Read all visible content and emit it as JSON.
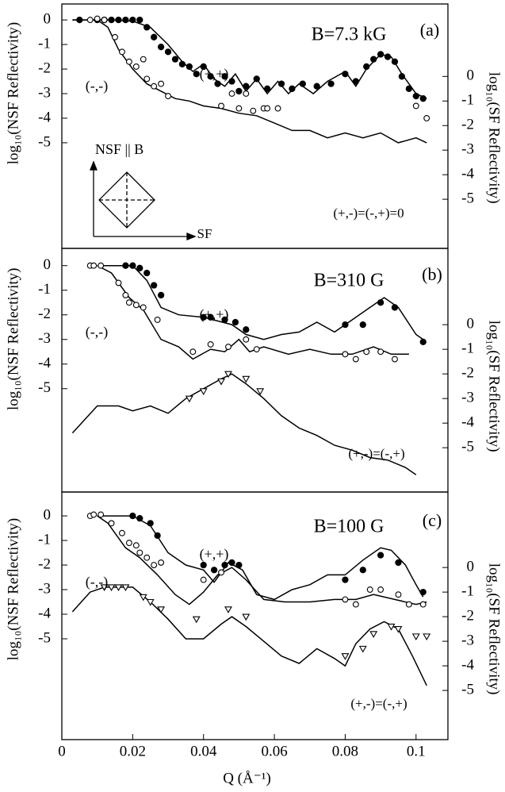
{
  "chart_data": [
    {
      "type": "scatter",
      "xlim": [
        0,
        0.109
      ],
      "ylim": [
        -9.3,
        0.65
      ],
      "yticks": [
        0,
        -1,
        -2,
        -3,
        -4,
        -5
      ],
      "y2lim": [
        -7.0,
        2.95
      ],
      "y2ticks": [
        0,
        -1,
        -2,
        -3,
        -4,
        -5
      ],
      "y_label": "log₁₀(NSF Reflectivity)",
      "y2_label": "log₁₀(SF Reflectivity)",
      "annotations": [
        "B=7.3 kG",
        "(a)",
        "(+,+)",
        "(-,-)",
        "(+,-)=(-,+)=0",
        "NSF || B",
        "SF"
      ],
      "series": [
        {
          "marker": "line",
          "color": "#000000",
          "x": [
            0.003,
            0.01,
            0.014,
            0.02,
            0.025,
            0.03,
            0.034,
            0.037,
            0.04,
            0.043,
            0.046,
            0.049,
            0.052,
            0.055,
            0.058,
            0.061,
            0.064,
            0.067,
            0.071,
            0.075,
            0.08,
            0.083,
            0.086,
            0.09,
            0.093,
            0.096,
            0.1,
            0.103
          ],
          "values": [
            0,
            0,
            0,
            -0.05,
            -0.3,
            -1,
            -1.7,
            -2.1,
            -1.8,
            -2.4,
            -2.7,
            -2.2,
            -2.9,
            -2.4,
            -3.0,
            -2.5,
            -3.0,
            -2.6,
            -3.0,
            -2.5,
            -2.1,
            -2.7,
            -2.0,
            -1.4,
            -1.5,
            -2.2,
            -3.0,
            -3.2
          ]
        },
        {
          "marker": "line",
          "color": "#000000",
          "x": [
            0.003,
            0.01,
            0.013,
            0.016,
            0.02,
            0.024,
            0.028,
            0.032,
            0.036,
            0.04,
            0.045,
            0.05,
            0.055,
            0.06,
            0.065,
            0.07,
            0.075,
            0.08,
            0.085,
            0.09,
            0.095,
            0.1,
            0.103
          ],
          "values": [
            0,
            0,
            -0.3,
            -1.2,
            -2.0,
            -2.6,
            -2.9,
            -3.2,
            -3.3,
            -3.5,
            -3.6,
            -3.8,
            -3.9,
            -4.2,
            -4.5,
            -4.5,
            -4.8,
            -4.6,
            -4.8,
            -4.6,
            -5.0,
            -4.8,
            -5.0
          ]
        },
        {
          "marker": "filled-circle",
          "color": "#000000",
          "x": [
            0.005,
            0.01,
            0.012,
            0.014,
            0.016,
            0.018,
            0.02,
            0.022,
            0.024,
            0.026,
            0.028,
            0.03,
            0.032,
            0.034,
            0.036,
            0.038,
            0.04,
            0.042,
            0.044,
            0.046,
            0.048,
            0.05,
            0.052,
            0.055,
            0.058,
            0.062,
            0.065,
            0.068,
            0.072,
            0.076,
            0.08,
            0.083,
            0.086,
            0.088,
            0.09,
            0.092,
            0.094,
            0.096,
            0.098,
            0.1,
            0.102
          ],
          "values": [
            0,
            0,
            0,
            0,
            0,
            0,
            0,
            0,
            -0.3,
            -0.7,
            -1.1,
            -1.3,
            -1.6,
            -1.8,
            -1.9,
            -2.2,
            -1.9,
            -2.3,
            -2.6,
            -2.3,
            -2.5,
            -2.9,
            -2.7,
            -2.4,
            -2.8,
            -2.6,
            -2.8,
            -2.6,
            -2.7,
            -2.6,
            -2.2,
            -2.5,
            -1.9,
            -1.6,
            -1.4,
            -1.5,
            -1.7,
            -2.3,
            -2.8,
            -3.1,
            -3.2
          ]
        },
        {
          "marker": "open-circle",
          "color": "#000000",
          "x": [
            0.008,
            0.01,
            0.012,
            0.015,
            0.017,
            0.019,
            0.021,
            0.023,
            0.024,
            0.026,
            0.028,
            0.03,
            0.045,
            0.048,
            0.05,
            0.052,
            0.054,
            0.057,
            0.058,
            0.061,
            0.1,
            0.103
          ],
          "values": [
            0,
            0.05,
            0,
            -0.7,
            -1.3,
            -1.7,
            -1.9,
            -1.6,
            -2.4,
            -2.7,
            -2.6,
            -3.1,
            -3.5,
            -3.0,
            -3.6,
            -3.0,
            -3.7,
            -3.6,
            -3.6,
            -3.6,
            -3.5,
            -4.0
          ]
        }
      ]
    },
    {
      "type": "scatter",
      "xlim": [
        0,
        0.109
      ],
      "ylim": [
        -9.2,
        0.7
      ],
      "yticks": [
        0,
        -1,
        -2,
        -3,
        -4,
        -5
      ],
      "y2lim": [
        -6.8,
        3.1
      ],
      "y2ticks": [
        0,
        -1,
        -2,
        -3,
        -4,
        -5
      ],
      "y_label": "log₁₀(NSF Reflectivity)",
      "y2_label": "log₁₀(SF Reflectivity)",
      "annotations": [
        "B=310 G",
        "(b)",
        "(+,+)",
        "(-,-)",
        "(+,-)=(-,+)"
      ],
      "series": [
        {
          "marker": "line",
          "color": "#000000",
          "x": [
            0.01,
            0.02,
            0.024,
            0.028,
            0.033,
            0.04,
            0.048,
            0.052,
            0.057,
            0.062,
            0.067,
            0.072,
            0.077,
            0.082,
            0.087,
            0.091,
            0.095,
            0.1,
            0.102
          ],
          "values": [
            0,
            0,
            -0.6,
            -1.7,
            -2.0,
            -2.1,
            -2.4,
            -2.8,
            -3.0,
            -2.8,
            -2.7,
            -2.3,
            -2.7,
            -2.2,
            -1.7,
            -1.3,
            -1.7,
            -2.8,
            -3.0
          ]
        },
        {
          "marker": "line",
          "color": "#000000",
          "x": [
            0.01,
            0.014,
            0.019,
            0.023,
            0.028,
            0.033,
            0.037,
            0.042,
            0.046,
            0.05,
            0.053,
            0.057,
            0.064,
            0.07,
            0.076,
            0.082,
            0.088,
            0.093,
            0.098
          ],
          "values": [
            0,
            -0.3,
            -1.3,
            -1.8,
            -3.0,
            -3.3,
            -3.8,
            -3.4,
            -3.5,
            -3.0,
            -3.5,
            -3.3,
            -3.6,
            -3.4,
            -3.6,
            -3.6,
            -3.3,
            -3.6,
            -3.6
          ]
        },
        {
          "marker": "line",
          "color": "#000000",
          "axis": "y2",
          "x": [
            0.003,
            0.01,
            0.016,
            0.02,
            0.025,
            0.03,
            0.035,
            0.04,
            0.045,
            0.048,
            0.052,
            0.057,
            0.062,
            0.067,
            0.072,
            0.077,
            0.082,
            0.087,
            0.092,
            0.097,
            0.1
          ],
          "values": [
            -4.4,
            -3.3,
            -3.3,
            -3.5,
            -3.3,
            -3.6,
            -3.0,
            -2.6,
            -2.2,
            -2.0,
            -2.4,
            -3.0,
            -3.7,
            -4.2,
            -4.5,
            -4.9,
            -5.1,
            -5.4,
            -5.5,
            -5.8,
            -6.1
          ]
        },
        {
          "marker": "filled-circle",
          "color": "#000000",
          "x": [
            0.018,
            0.02,
            0.022,
            0.024,
            0.026,
            0.028,
            0.04,
            0.042,
            0.046,
            0.049,
            0.052,
            0.08,
            0.085,
            0.09,
            0.094,
            0.102
          ],
          "values": [
            0,
            0,
            -0.1,
            -0.3,
            -0.8,
            -1.2,
            -2.1,
            -2.1,
            -2.2,
            -2.3,
            -2.6,
            -2.4,
            -2.4,
            -1.5,
            -1.7,
            -3.1
          ]
        },
        {
          "marker": "open-circle",
          "color": "#000000",
          "x": [
            0.008,
            0.009,
            0.011,
            0.016,
            0.018,
            0.019,
            0.021,
            0.023,
            0.027,
            0.037,
            0.042,
            0.047,
            0.052,
            0.055,
            0.08,
            0.083,
            0.086,
            0.09,
            0.094
          ],
          "values": [
            0,
            0,
            0,
            -0.7,
            -1.2,
            -1.5,
            -1.6,
            -1.7,
            -2.2,
            -3.5,
            -3.2,
            -3.3,
            -3.0,
            -3.4,
            -3.6,
            -3.8,
            -3.5,
            -3.5,
            -3.8
          ]
        },
        {
          "marker": "open-triangle",
          "color": "#000000",
          "axis": "y2",
          "x": [
            0.036,
            0.04,
            0.045,
            0.047,
            0.052,
            0.056
          ],
          "values": [
            -3.0,
            -2.7,
            -2.3,
            -2.0,
            -2.2,
            -2.7
          ]
        }
      ]
    },
    {
      "type": "scatter",
      "xlim": [
        0,
        0.109
      ],
      "ylim": [
        -9.1,
        0.97
      ],
      "yticks": [
        0,
        -1,
        -2,
        -3,
        -4,
        -5
      ],
      "y2lim": [
        -7.0,
        3.07
      ],
      "y2ticks": [
        0,
        -1,
        -2,
        -3,
        -4,
        -5
      ],
      "xticks": [
        0,
        0.02,
        0.04,
        0.06,
        0.08,
        0.1
      ],
      "x_label": "Q (Å⁻¹)",
      "y_label": "log₁₀(NSF Reflectivity)",
      "y2_label": "log₁₀(SF Reflectivity)",
      "annotations": [
        "B=100 G",
        "(c)",
        "(+,+)",
        "(-,-)",
        "(+,-)=(-,+)"
      ],
      "series": [
        {
          "marker": "line",
          "color": "#000000",
          "x": [
            0.01,
            0.02,
            0.025,
            0.03,
            0.035,
            0.04,
            0.043,
            0.047,
            0.051,
            0.055,
            0.06,
            0.065,
            0.07,
            0.075,
            0.08,
            0.085,
            0.09,
            0.093,
            0.097,
            0.1,
            0.102
          ],
          "values": [
            0,
            0,
            -0.4,
            -1.5,
            -2.0,
            -2.2,
            -2.7,
            -1.9,
            -2.2,
            -3.2,
            -3.4,
            -3.0,
            -2.8,
            -2.4,
            -2.4,
            -1.8,
            -1.3,
            -1.4,
            -2.0,
            -2.8,
            -3.3
          ]
        },
        {
          "marker": "line",
          "color": "#000000",
          "x": [
            0.01,
            0.013,
            0.018,
            0.022,
            0.027,
            0.032,
            0.036,
            0.04,
            0.044,
            0.048,
            0.052,
            0.057,
            0.063,
            0.07,
            0.077,
            0.083,
            0.088,
            0.094,
            0.1,
            0.103
          ],
          "values": [
            0,
            -0.3,
            -1.3,
            -1.7,
            -2.4,
            -3.2,
            -3.6,
            -3.1,
            -2.4,
            -2.1,
            -2.6,
            -3.4,
            -3.5,
            -3.5,
            -3.4,
            -3.4,
            -3.2,
            -3.4,
            -3.6,
            -3.5
          ]
        },
        {
          "marker": "line",
          "color": "#000000",
          "axis": "y2",
          "x": [
            0.003,
            0.008,
            0.012,
            0.02,
            0.025,
            0.03,
            0.035,
            0.04,
            0.045,
            0.048,
            0.052,
            0.057,
            0.062,
            0.067,
            0.072,
            0.077,
            0.08,
            0.083,
            0.087,
            0.091,
            0.095,
            0.099,
            0.103
          ],
          "values": [
            -1.8,
            -1.0,
            -0.8,
            -0.8,
            -1.4,
            -2.1,
            -2.9,
            -2.9,
            -2.3,
            -2.0,
            -2.4,
            -3.0,
            -3.6,
            -3.9,
            -3.3,
            -3.7,
            -4.0,
            -3.1,
            -2.5,
            -2.2,
            -2.5,
            -3.6,
            -4.8
          ]
        },
        {
          "marker": "filled-circle",
          "color": "#000000",
          "x": [
            0.02,
            0.022,
            0.025,
            0.027,
            0.04,
            0.043,
            0.046,
            0.048,
            0.05,
            0.08,
            0.085,
            0.09,
            0.095,
            0.102
          ],
          "values": [
            0,
            -0.1,
            -0.3,
            -0.8,
            -2.0,
            -2.2,
            -2.0,
            -1.9,
            -2.0,
            -2.6,
            -2.2,
            -1.6,
            -1.9,
            -3.1
          ]
        },
        {
          "marker": "open-circle",
          "color": "#000000",
          "x": [
            0.008,
            0.009,
            0.011,
            0.014,
            0.017,
            0.019,
            0.021,
            0.022,
            0.024,
            0.026,
            0.028,
            0.04,
            0.045,
            0.08,
            0.083,
            0.087,
            0.09,
            0.095,
            0.098,
            0.102
          ],
          "values": [
            0,
            0.05,
            0.05,
            -0.3,
            -0.7,
            -1.1,
            -1.2,
            -1.5,
            -1.7,
            -2.0,
            -1.9,
            -2.6,
            -2.3,
            -3.4,
            -3.6,
            -3.0,
            -3.0,
            -3.2,
            -3.6,
            -3.6
          ]
        },
        {
          "marker": "open-triangle",
          "color": "#000000",
          "axis": "y2",
          "x": [
            0.012,
            0.014,
            0.016,
            0.018,
            0.023,
            0.025,
            0.028,
            0.038,
            0.047,
            0.052,
            0.08,
            0.085,
            0.088,
            0.093,
            0.095,
            0.1,
            0.103
          ],
          "values": [
            -0.8,
            -0.8,
            -0.8,
            -0.8,
            -1.2,
            -1.4,
            -1.7,
            -2.1,
            -1.7,
            -2.0,
            -3.6,
            -3.3,
            -2.7,
            -2.4,
            -2.5,
            -2.8,
            -2.8
          ]
        }
      ]
    }
  ]
}
